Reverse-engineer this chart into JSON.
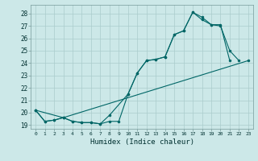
{
  "xlabel": "Humidex (Indice chaleur)",
  "bg_color": "#cce8e8",
  "grid_color": "#aacccc",
  "line_color": "#006666",
  "xlim": [
    -0.5,
    23.5
  ],
  "ylim": [
    18.7,
    28.7
  ],
  "yticks": [
    19,
    20,
    21,
    22,
    23,
    24,
    25,
    26,
    27,
    28
  ],
  "xticks": [
    0,
    1,
    2,
    3,
    4,
    5,
    6,
    7,
    8,
    9,
    10,
    11,
    12,
    13,
    14,
    15,
    16,
    17,
    18,
    19,
    20,
    21,
    22,
    23
  ],
  "line1_x": [
    0,
    1,
    2,
    3,
    4,
    5,
    6,
    7,
    8,
    9,
    10,
    11,
    12,
    13,
    14,
    15,
    16,
    17,
    18,
    19,
    20,
    21
  ],
  "line1_y": [
    20.2,
    19.3,
    19.4,
    19.6,
    19.3,
    19.2,
    19.2,
    19.1,
    19.3,
    19.3,
    21.5,
    23.2,
    24.2,
    24.3,
    24.5,
    26.3,
    26.6,
    28.1,
    27.7,
    27.1,
    27.1,
    24.2
  ],
  "line2_x": [
    0,
    1,
    2,
    3,
    4,
    5,
    6,
    7,
    8,
    10,
    11,
    12,
    13,
    14,
    15,
    16,
    17,
    18,
    19,
    20,
    21,
    22
  ],
  "line2_y": [
    20.2,
    19.3,
    19.4,
    19.6,
    19.3,
    19.2,
    19.2,
    19.1,
    19.8,
    21.5,
    23.2,
    24.2,
    24.3,
    24.5,
    26.3,
    26.6,
    28.1,
    27.5,
    27.1,
    27.0,
    25.0,
    24.2
  ],
  "line3_x": [
    0,
    3,
    23
  ],
  "line3_y": [
    20.2,
    19.6,
    24.2
  ]
}
